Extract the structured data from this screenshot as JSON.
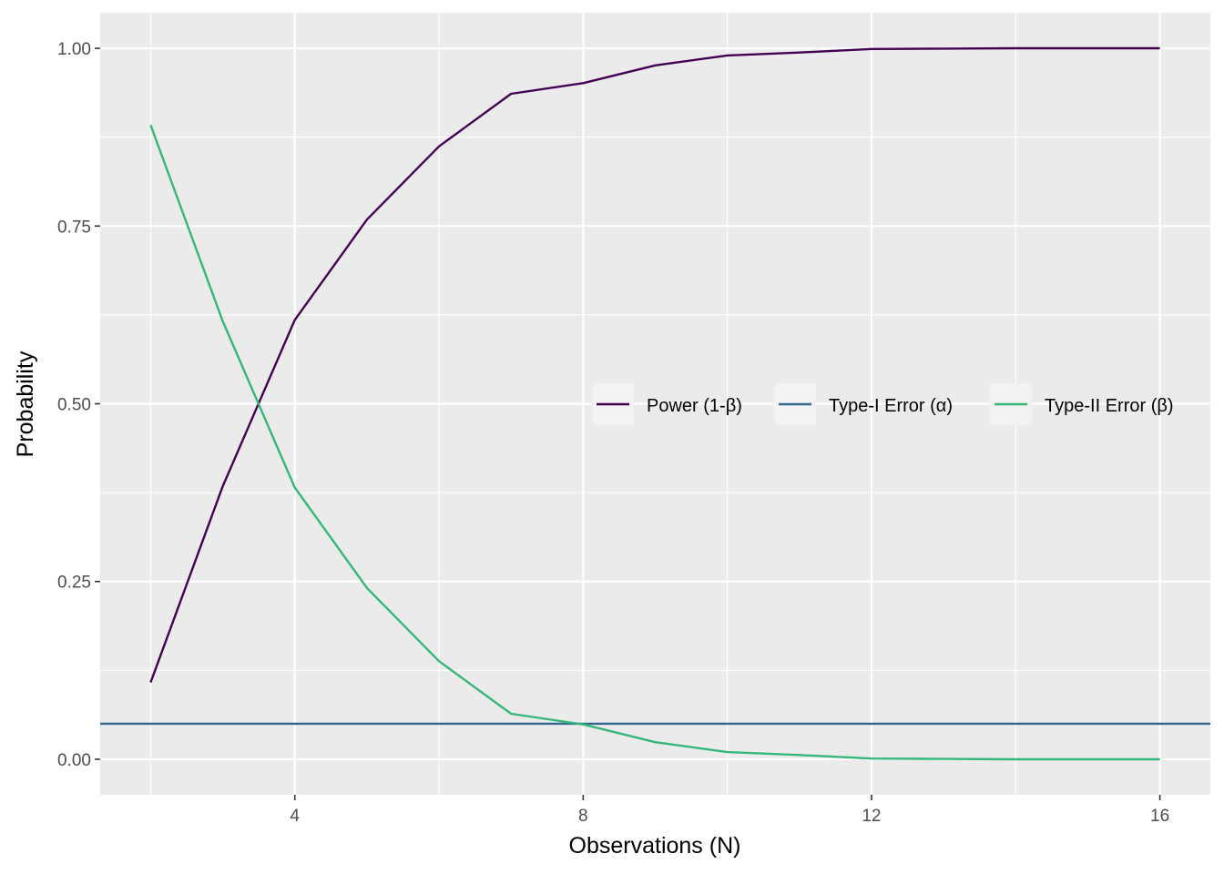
{
  "chart_data": {
    "type": "line",
    "title": "",
    "xlabel": "Observations (N)",
    "ylabel": "Probability",
    "xlim": [
      1.3,
      16.7
    ],
    "ylim": [
      -0.05,
      1.05
    ],
    "x_ticks": [
      4,
      8,
      12,
      16
    ],
    "x_tick_labels": [
      "4",
      "8",
      "12",
      "16"
    ],
    "x_minor_ticks": [
      2,
      6,
      10,
      14
    ],
    "y_ticks": [
      0,
      0.25,
      0.5,
      0.75,
      1
    ],
    "y_tick_labels": [
      "0.00",
      "0.25",
      "0.50",
      "0.75",
      "1.00"
    ],
    "y_minor_ticks": [
      0.125,
      0.375,
      0.625,
      0.875
    ],
    "grid": true,
    "legend_position": "right, horizontal",
    "series": [
      {
        "name": "Power (1-β)",
        "color": "#440154",
        "x": [
          2,
          3,
          4,
          5,
          6,
          7,
          8,
          9,
          10,
          11,
          12,
          13,
          14,
          15,
          16
        ],
        "y": [
          0.108,
          0.384,
          0.618,
          0.759,
          0.862,
          0.936,
          0.951,
          0.976,
          0.99,
          0.994,
          0.999,
          0.9995,
          1.0,
          1.0,
          1.0
        ]
      },
      {
        "name": "Type-I Error (α)",
        "color": "#31688E",
        "x": [
          1.3,
          16.7
        ],
        "y": [
          0.05,
          0.05
        ]
      },
      {
        "name": "Type-II Error (β)",
        "color": "#35B779",
        "x": [
          2,
          3,
          4,
          5,
          6,
          7,
          8,
          9,
          10,
          11,
          12,
          13,
          14,
          15,
          16
        ],
        "y": [
          0.892,
          0.616,
          0.382,
          0.241,
          0.138,
          0.064,
          0.049,
          0.024,
          0.01,
          0.006,
          0.001,
          0.0005,
          0.0,
          0.0,
          0.0
        ]
      }
    ]
  }
}
